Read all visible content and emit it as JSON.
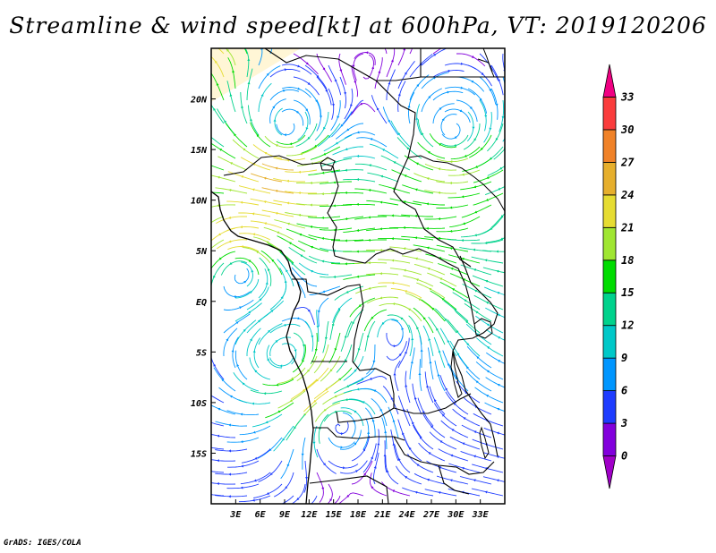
{
  "title": "Streamline & wind speed[kt] at 600hPa, VT: 2019120206",
  "credit": "GrADS: IGES/COLA",
  "map": {
    "lon_range": [
      0,
      36
    ],
    "lat_range": [
      -20,
      25
    ],
    "lat_ticks": [
      {
        "value": 20,
        "label": "20N"
      },
      {
        "value": 15,
        "label": "15N"
      },
      {
        "value": 10,
        "label": "10N"
      },
      {
        "value": 5,
        "label": "5N"
      },
      {
        "value": 0,
        "label": "EQ"
      },
      {
        "value": -5,
        "label": "5S"
      },
      {
        "value": -10,
        "label": "10S"
      },
      {
        "value": -15,
        "label": "15S"
      }
    ],
    "lon_ticks": [
      {
        "value": 3,
        "label": "3E"
      },
      {
        "value": 6,
        "label": "6E"
      },
      {
        "value": 9,
        "label": "9E"
      },
      {
        "value": 12,
        "label": "12E"
      },
      {
        "value": 15,
        "label": "15E"
      },
      {
        "value": 18,
        "label": "18E"
      },
      {
        "value": 21,
        "label": "21E"
      },
      {
        "value": 24,
        "label": "24E"
      },
      {
        "value": 27,
        "label": "27E"
      },
      {
        "value": 30,
        "label": "30E"
      },
      {
        "value": 33,
        "label": "33E"
      }
    ]
  },
  "colorbar": {
    "min": 0,
    "max": 33,
    "labels": [
      "33",
      "30",
      "27",
      "24",
      "21",
      "18",
      "15",
      "12",
      "9",
      "6",
      "3",
      "0"
    ],
    "colors": [
      "#a000c8",
      "#8200dc",
      "#1e3cff",
      "#0096ff",
      "#00c8c8",
      "#00d28c",
      "#00dc00",
      "#a0e632",
      "#e6dc32",
      "#e6af2d",
      "#f08228",
      "#fa3c3c",
      "#f00082"
    ]
  }
}
